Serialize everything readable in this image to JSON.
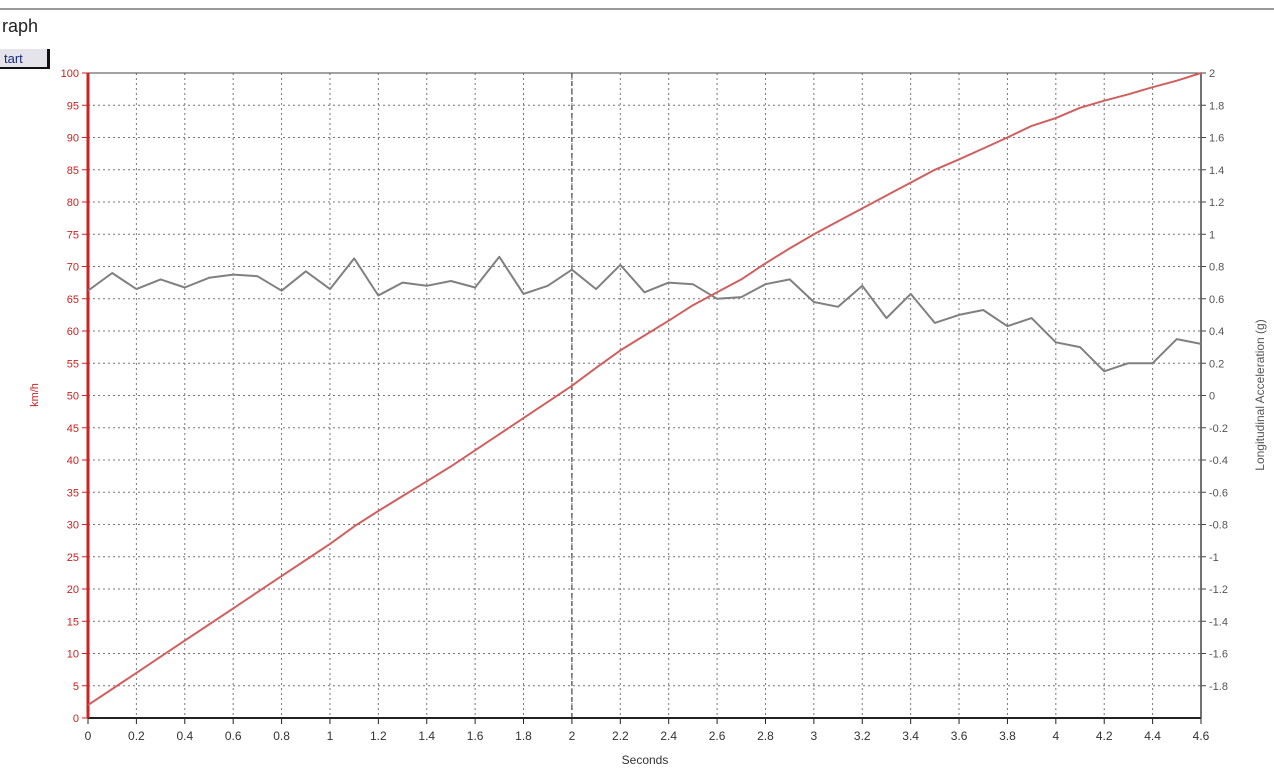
{
  "window": {
    "title": "raph"
  },
  "toolbar": {
    "start_label": "tart"
  },
  "chart_data": {
    "type": "line",
    "title": "",
    "xlabel": "Seconds",
    "ylabel": "km/h",
    "y2label": "Longitudinal Acceleration (g)",
    "xlim": [
      0,
      4.6
    ],
    "ylim": [
      0,
      100
    ],
    "y2lim": [
      -2,
      2
    ],
    "grid": true,
    "x_ticks": [
      "0",
      "0.2",
      "0.4",
      "0.6",
      "0.8",
      "1",
      "1.2",
      "1.4",
      "1.6",
      "1.8",
      "2",
      "2.2",
      "2.4",
      "2.6",
      "2.8",
      "3",
      "3.2",
      "3.4",
      "3.6",
      "3.8",
      "4",
      "4.2",
      "4.4",
      "4.6"
    ],
    "y_ticks": [
      "0",
      "5",
      "10",
      "15",
      "20",
      "25",
      "30",
      "35",
      "40",
      "45",
      "50",
      "55",
      "60",
      "65",
      "70",
      "75",
      "80",
      "85",
      "90",
      "95",
      "100"
    ],
    "y2_ticks": [
      "-1.8",
      "-1.6",
      "-1.4",
      "-1.2",
      "-1",
      "-0.8",
      "-0.6",
      "-0.4",
      "-0.2",
      "0",
      "0.2",
      "0.4",
      "0.6",
      "0.8",
      "1",
      "1.2",
      "1.4",
      "1.6",
      "1.8",
      "2"
    ],
    "colors": {
      "speed": "#d0605f",
      "accel": "#808080",
      "left_axis": "#cc2222",
      "grid": "#777777"
    },
    "x": [
      0,
      0.1,
      0.2,
      0.3,
      0.4,
      0.5,
      0.6,
      0.7,
      0.8,
      0.9,
      1.0,
      1.1,
      1.2,
      1.3,
      1.4,
      1.5,
      1.6,
      1.7,
      1.8,
      1.9,
      2.0,
      2.1,
      2.2,
      2.3,
      2.4,
      2.5,
      2.6,
      2.7,
      2.8,
      2.9,
      3.0,
      3.1,
      3.2,
      3.3,
      3.4,
      3.5,
      3.6,
      3.7,
      3.8,
      3.9,
      4.0,
      4.1,
      4.2,
      4.3,
      4.4,
      4.5,
      4.6
    ],
    "series": [
      {
        "axis": "left",
        "values": [
          2,
          4.5,
          7,
          9.5,
          12,
          14.5,
          17,
          19.5,
          22,
          24.5,
          27,
          29.7,
          32.1,
          34.4,
          36.7,
          39,
          41.5,
          44,
          46.5,
          49,
          51.5,
          54.3,
          57,
          59.3,
          61.6,
          64,
          66,
          68,
          70.5,
          72.8,
          75,
          77,
          79,
          81,
          83,
          85,
          86.6,
          88.3,
          90,
          91.8,
          93,
          94.6,
          95.7,
          96.7,
          97.8,
          98.8,
          100
        ]
      },
      {
        "axis": "right",
        "values": [
          0.65,
          0.76,
          0.66,
          0.72,
          0.67,
          0.73,
          0.75,
          0.74,
          0.65,
          0.77,
          0.66,
          0.85,
          0.62,
          0.7,
          0.68,
          0.71,
          0.67,
          0.86,
          0.63,
          0.68,
          0.78,
          0.66,
          0.81,
          0.64,
          0.7,
          0.69,
          0.6,
          0.61,
          0.69,
          0.72,
          0.58,
          0.55,
          0.68,
          0.48,
          0.63,
          0.45,
          0.5,
          0.53,
          0.43,
          0.48,
          0.33,
          0.3,
          0.15,
          0.2,
          0.2,
          0.35,
          0.32
        ]
      }
    ]
  }
}
